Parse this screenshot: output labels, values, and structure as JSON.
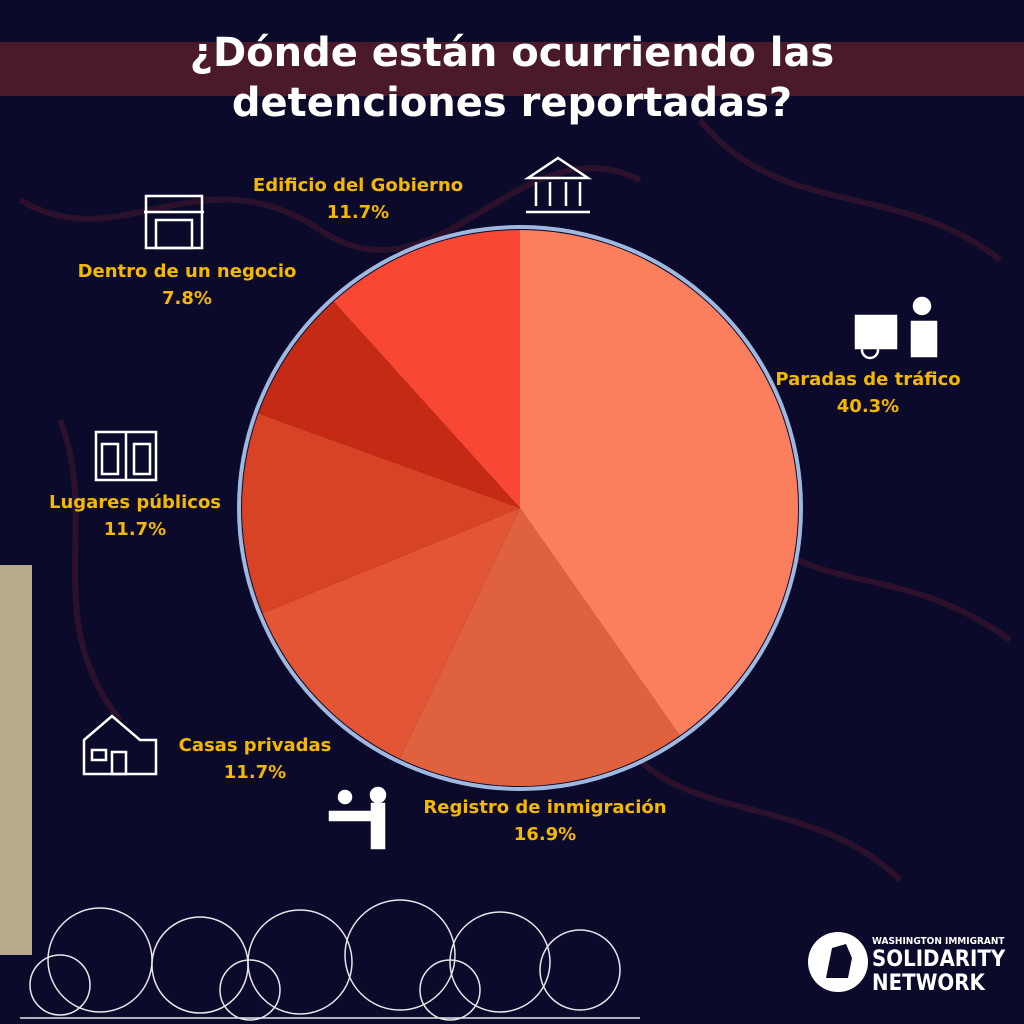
{
  "chart_data": {
    "type": "pie",
    "title": "¿Dónde están ocurriendo las detenciones reportadas?",
    "categories": [
      "Paradas de tráfico",
      "Registro de inmigración",
      "Casas privadas",
      "Lugares públicos",
      "Dentro de un negocio",
      "Edificio del Gobierno"
    ],
    "values": [
      40.3,
      16.9,
      11.7,
      11.7,
      7.8,
      11.7
    ],
    "value_labels": [
      "40.3%",
      "16.9%",
      "11.7%",
      "11.7%",
      "7.8%",
      "11.7%"
    ],
    "colors": [
      "#fc7f5d",
      "#e0613e",
      "#e35535",
      "#d84326",
      "#c42a14",
      "#f84733"
    ]
  },
  "logo": {
    "line1": "WASHINGTON IMMIGRANT",
    "line2": "SOLIDARITY",
    "line3": "NETWORK"
  }
}
